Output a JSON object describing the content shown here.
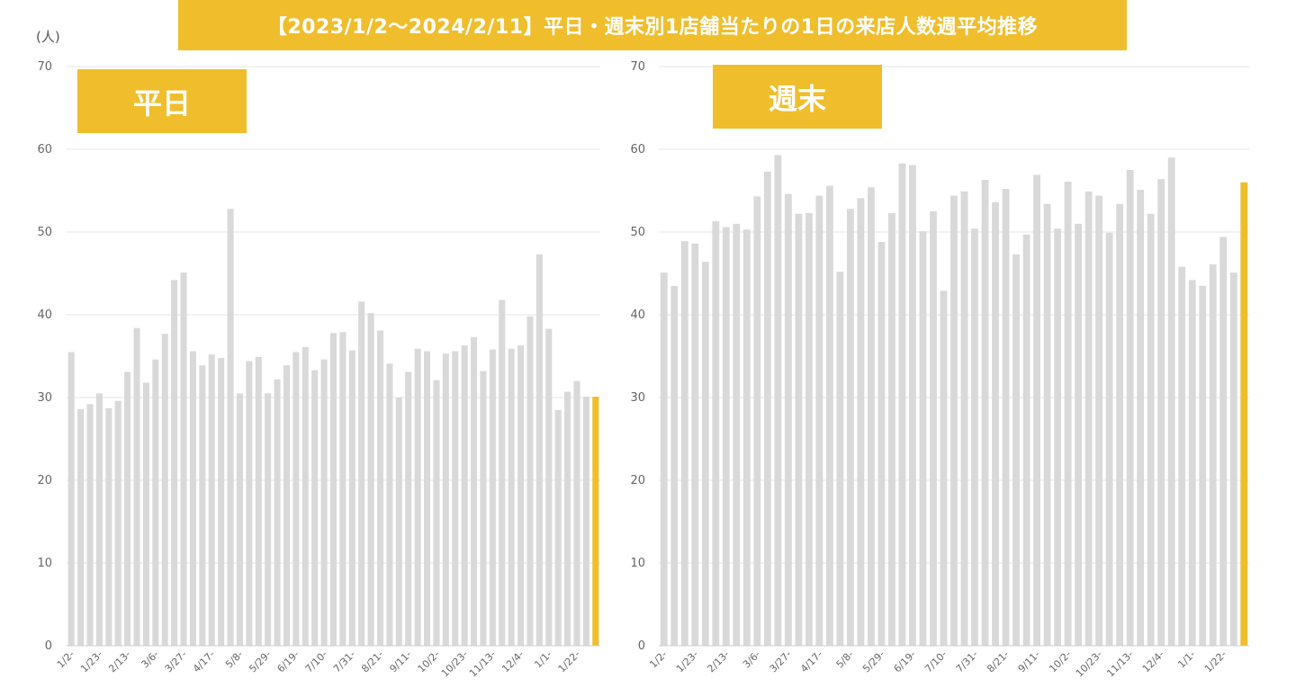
{
  "page": {
    "title": "【2023/1/2〜2024/2/11】平日・週末別1店舗当たりの1日の来店人数週平均推移",
    "unit": "(人)"
  },
  "colors": {
    "bar": "#d9d9d9",
    "highlight": "#f0be2c",
    "grid": "#e4e4e4",
    "banner": "#f0be2c"
  },
  "chart_data": [
    {
      "type": "bar",
      "title": "平日",
      "ylim": [
        0,
        70
      ],
      "yticks": [
        0,
        10,
        20,
        30,
        40,
        50,
        60,
        70
      ],
      "grid": true,
      "x_tick_labels": [
        {
          "index": 0,
          "label": "1/2-"
        },
        {
          "index": 3,
          "label": "1/23-"
        },
        {
          "index": 6,
          "label": "2/13-"
        },
        {
          "index": 9,
          "label": "3/6-"
        },
        {
          "index": 12,
          "label": "3/27-"
        },
        {
          "index": 15,
          "label": "4/17-"
        },
        {
          "index": 18,
          "label": "5/8-"
        },
        {
          "index": 21,
          "label": "5/29-"
        },
        {
          "index": 24,
          "label": "6/19-"
        },
        {
          "index": 27,
          "label": "7/10-"
        },
        {
          "index": 30,
          "label": "7/31-"
        },
        {
          "index": 33,
          "label": "8/21-"
        },
        {
          "index": 36,
          "label": "9/11-"
        },
        {
          "index": 39,
          "label": "10/2-"
        },
        {
          "index": 42,
          "label": "10/23-"
        },
        {
          "index": 45,
          "label": "11/13-"
        },
        {
          "index": 48,
          "label": "12/4-"
        },
        {
          "index": 51,
          "label": "1/1-"
        },
        {
          "index": 54,
          "label": "1/22-"
        }
      ],
      "values": [
        35.5,
        28.6,
        29.2,
        30.5,
        28.7,
        29.6,
        33.1,
        38.4,
        31.8,
        34.6,
        37.7,
        44.2,
        45.1,
        35.6,
        33.9,
        35.2,
        34.8,
        52.8,
        30.5,
        34.4,
        34.9,
        30.5,
        32.2,
        33.9,
        35.5,
        36.1,
        33.3,
        34.6,
        37.8,
        37.9,
        35.7,
        41.6,
        40.2,
        38.1,
        34.1,
        30.0,
        33.1,
        35.9,
        35.6,
        32.1,
        35.3,
        35.6,
        36.3,
        37.3,
        33.2,
        35.8,
        41.8,
        35.9,
        36.3,
        39.8,
        47.3,
        38.3,
        28.5,
        30.7,
        32.0,
        30.1,
        30.1
      ],
      "highlight_index": 56
    },
    {
      "type": "bar",
      "title": "週末",
      "ylim": [
        0,
        70
      ],
      "yticks": [
        0,
        10,
        20,
        30,
        40,
        50,
        60,
        70
      ],
      "grid": true,
      "x_tick_labels": [
        {
          "index": 0,
          "label": "1/2-"
        },
        {
          "index": 3,
          "label": "1/23-"
        },
        {
          "index": 6,
          "label": "2/13-"
        },
        {
          "index": 9,
          "label": "3/6-"
        },
        {
          "index": 12,
          "label": "3/27-"
        },
        {
          "index": 15,
          "label": "4/17-"
        },
        {
          "index": 18,
          "label": "5/8-"
        },
        {
          "index": 21,
          "label": "5/29-"
        },
        {
          "index": 24,
          "label": "6/19-"
        },
        {
          "index": 27,
          "label": "7/10-"
        },
        {
          "index": 30,
          "label": "7/31-"
        },
        {
          "index": 33,
          "label": "8/21-"
        },
        {
          "index": 36,
          "label": "9/11-"
        },
        {
          "index": 39,
          "label": "10/2-"
        },
        {
          "index": 42,
          "label": "10/23-"
        },
        {
          "index": 45,
          "label": "11/13-"
        },
        {
          "index": 48,
          "label": "12/4-"
        },
        {
          "index": 51,
          "label": "1/1-"
        },
        {
          "index": 54,
          "label": "1/22-"
        }
      ],
      "values": [
        45.1,
        43.5,
        48.9,
        48.6,
        46.4,
        51.3,
        50.6,
        51.0,
        50.3,
        54.3,
        57.3,
        59.3,
        54.6,
        52.2,
        52.3,
        54.4,
        55.6,
        45.2,
        52.8,
        54.1,
        55.4,
        48.8,
        52.3,
        58.3,
        58.1,
        50.1,
        52.5,
        42.9,
        54.4,
        54.9,
        50.4,
        56.3,
        53.6,
        55.2,
        47.3,
        49.7,
        56.9,
        53.4,
        50.4,
        56.1,
        51.0,
        54.9,
        54.4,
        49.9,
        53.4,
        57.5,
        55.1,
        52.2,
        56.4,
        59.0,
        45.8,
        44.2,
        43.5,
        46.1,
        49.4,
        45.1,
        56.0
      ],
      "highlight_index": 56
    }
  ]
}
